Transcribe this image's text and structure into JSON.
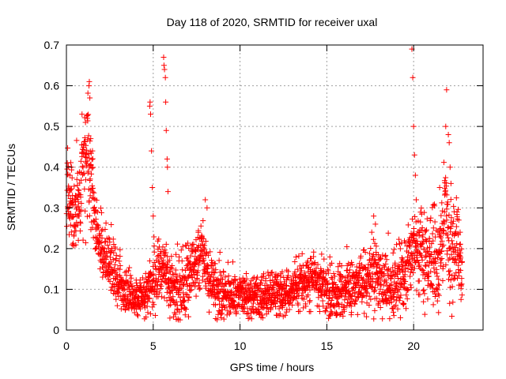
{
  "chart_data": {
    "type": "scatter",
    "title": "Day 118 of 2020, SRMTID for receiver uxal",
    "xlabel": "GPS time / hours",
    "ylabel": "SRMTID / TECUs",
    "xlim": [
      0,
      24
    ],
    "ylim": [
      0,
      0.7
    ],
    "xticks": [
      0,
      5,
      10,
      15,
      20
    ],
    "xtick_labels": [
      "0",
      "5",
      "10",
      "15",
      "20"
    ],
    "yticks": [
      0,
      0.1,
      0.2,
      0.3,
      0.4,
      0.5,
      0.6,
      0.7
    ],
    "ytick_labels": [
      "0",
      "0.1",
      "0.2",
      "0.3",
      "0.4",
      "0.5",
      "0.6",
      "0.7"
    ],
    "grid": true,
    "marker": "plus",
    "series": [
      {
        "name": "SRMTID",
        "color": "#ff0000",
        "trend": [
          [
            0.0,
            0.32
          ],
          [
            0.4,
            0.3
          ],
          [
            0.8,
            0.33
          ],
          [
            1.0,
            0.42
          ],
          [
            1.3,
            0.4
          ],
          [
            1.6,
            0.3
          ],
          [
            1.9,
            0.21
          ],
          [
            2.3,
            0.18
          ],
          [
            2.7,
            0.15
          ],
          [
            3.0,
            0.12
          ],
          [
            3.5,
            0.09
          ],
          [
            4.0,
            0.08
          ],
          [
            4.5,
            0.09
          ],
          [
            5.0,
            0.12
          ],
          [
            5.5,
            0.16
          ],
          [
            5.8,
            0.14
          ],
          [
            6.2,
            0.1
          ],
          [
            6.8,
            0.1
          ],
          [
            7.3,
            0.15
          ],
          [
            7.8,
            0.2
          ],
          [
            8.2,
            0.13
          ],
          [
            8.7,
            0.1
          ],
          [
            9.5,
            0.08
          ],
          [
            10.5,
            0.08
          ],
          [
            11.5,
            0.08
          ],
          [
            12.5,
            0.09
          ],
          [
            13.5,
            0.11
          ],
          [
            14.2,
            0.14
          ],
          [
            14.8,
            0.1
          ],
          [
            15.5,
            0.08
          ],
          [
            16.2,
            0.1
          ],
          [
            17.0,
            0.12
          ],
          [
            17.7,
            0.14
          ],
          [
            18.3,
            0.12
          ],
          [
            19.0,
            0.1
          ],
          [
            19.6,
            0.15
          ],
          [
            20.0,
            0.22
          ],
          [
            20.5,
            0.2
          ],
          [
            21.0,
            0.17
          ],
          [
            21.5,
            0.15
          ],
          [
            21.8,
            0.3
          ],
          [
            22.2,
            0.18
          ],
          [
            22.5,
            0.22
          ],
          [
            22.8,
            0.13
          ]
        ],
        "spread": [
          [
            0.0,
            0.06
          ],
          [
            1.3,
            0.08
          ],
          [
            2.0,
            0.05
          ],
          [
            3.0,
            0.04
          ],
          [
            4.0,
            0.03
          ],
          [
            5.0,
            0.05
          ],
          [
            8.0,
            0.05
          ],
          [
            10.0,
            0.035
          ],
          [
            13.5,
            0.04
          ],
          [
            17.7,
            0.05
          ],
          [
            20.0,
            0.07
          ],
          [
            21.8,
            0.09
          ],
          [
            22.8,
            0.06
          ]
        ],
        "peaks": [
          [
            0.05,
            0.41
          ],
          [
            0.2,
            0.38
          ],
          [
            0.3,
            0.4
          ],
          [
            0.9,
            0.53
          ],
          [
            1.1,
            0.51
          ],
          [
            1.2,
            0.52
          ],
          [
            1.3,
            0.6
          ],
          [
            1.32,
            0.61
          ],
          [
            1.35,
            0.57
          ],
          [
            1.4,
            0.47
          ],
          [
            1.5,
            0.44
          ],
          [
            4.8,
            0.55
          ],
          [
            4.82,
            0.56
          ],
          [
            4.85,
            0.53
          ],
          [
            4.9,
            0.44
          ],
          [
            4.95,
            0.35
          ],
          [
            5.0,
            0.28
          ],
          [
            5.6,
            0.67
          ],
          [
            5.62,
            0.65
          ],
          [
            5.65,
            0.64
          ],
          [
            5.7,
            0.62
          ],
          [
            5.72,
            0.56
          ],
          [
            5.75,
            0.49
          ],
          [
            5.8,
            0.42
          ],
          [
            5.82,
            0.4
          ],
          [
            5.85,
            0.34
          ],
          [
            7.6,
            0.24
          ],
          [
            8.0,
            0.32
          ],
          [
            8.1,
            0.3
          ],
          [
            17.7,
            0.28
          ],
          [
            17.8,
            0.26
          ],
          [
            19.9,
            0.69
          ],
          [
            19.95,
            0.62
          ],
          [
            20.0,
            0.5
          ],
          [
            20.05,
            0.43
          ],
          [
            20.1,
            0.38
          ],
          [
            20.15,
            0.32
          ],
          [
            21.9,
            0.59
          ],
          [
            21.85,
            0.5
          ],
          [
            22.0,
            0.48
          ],
          [
            22.05,
            0.46
          ],
          [
            22.1,
            0.4
          ],
          [
            22.15,
            0.36
          ],
          [
            21.5,
            0.35
          ],
          [
            22.5,
            0.29
          ],
          [
            22.6,
            0.27
          ]
        ]
      }
    ]
  }
}
